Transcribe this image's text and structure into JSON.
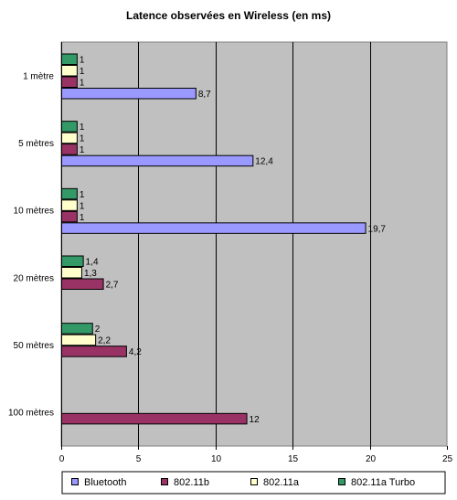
{
  "chart_data": {
    "type": "bar",
    "orientation": "horizontal",
    "title": "Latence observées en Wireless (en ms)",
    "xlabel": "",
    "ylabel": "",
    "xlim": [
      0,
      25
    ],
    "x_ticks": [
      "0",
      "5",
      "10",
      "15",
      "20",
      "25"
    ],
    "grid": "vertical",
    "legend_position": "bottom",
    "categories": [
      "1 mètre",
      "5 mètres",
      "10 mètres",
      "20 mètres",
      "50 mètres",
      "100 mètres"
    ],
    "series": [
      {
        "name": "Bluetooth",
        "color": "#9999ff",
        "values": [
          8.7,
          12.4,
          19.7,
          null,
          null,
          null
        ],
        "labels": [
          "8,7",
          "12,4",
          "19,7",
          "",
          "",
          ""
        ]
      },
      {
        "name": "802.11b",
        "color": "#993366",
        "values": [
          1,
          1,
          1,
          2.7,
          4.2,
          12
        ],
        "labels": [
          "1",
          "1",
          "1",
          "2,7",
          "4,2",
          "12"
        ]
      },
      {
        "name": "802.11a",
        "color": "#ffffcc",
        "values": [
          1,
          1,
          1,
          1.3,
          2.2,
          null
        ],
        "labels": [
          "1",
          "1",
          "1",
          "1,3",
          "2,2",
          ""
        ]
      },
      {
        "name": "802.11a Turbo",
        "color": "#339966",
        "values": [
          1,
          1,
          1,
          1.4,
          2,
          null
        ],
        "labels": [
          "1",
          "1",
          "1",
          "1,4",
          "2",
          ""
        ]
      }
    ],
    "plot_background": "#c0c0c0"
  }
}
